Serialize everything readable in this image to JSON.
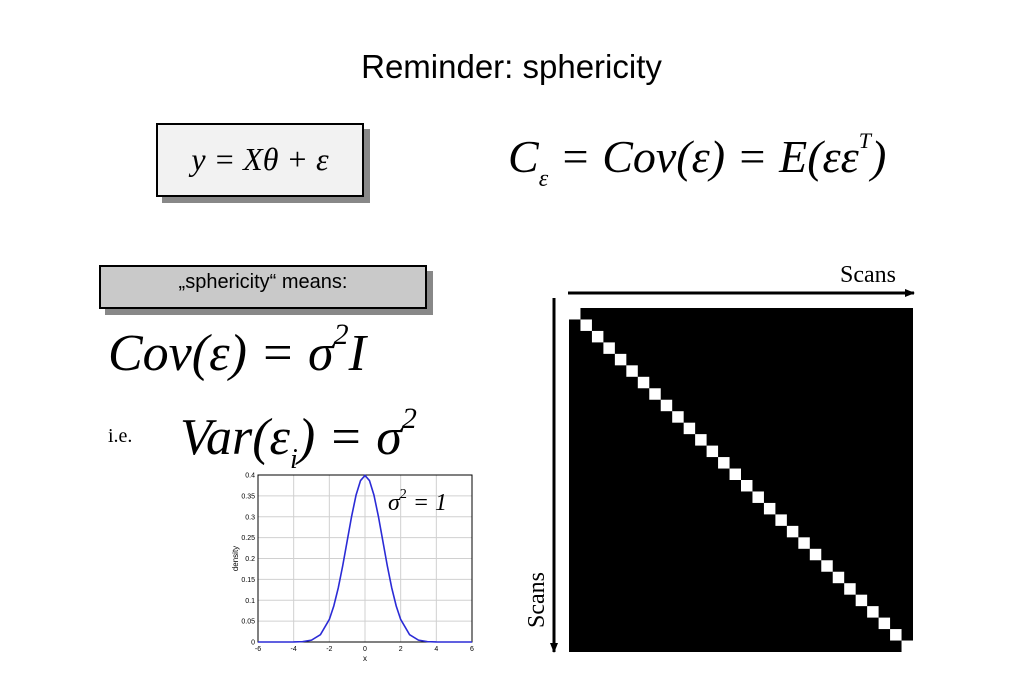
{
  "title": "Reminder: sphericity",
  "model_equation": "y = Xθ + ε",
  "covariance_definition": {
    "lhs": "C",
    "lhs_subscript": "ε",
    "rhs": " = Cov(ε) = E(εε",
    "superscript": "T",
    "close": ")"
  },
  "sphericity_label": "„sphericity“ means:",
  "sphericity_equation": {
    "main": "Cov(ε) = σ",
    "superscript": "2",
    "tail": "I"
  },
  "ie_label": "i.e.",
  "variance_equation": {
    "main": "Var(ε",
    "subscript": "i",
    "rest": ") = σ",
    "superscript": "2"
  },
  "sigma_note": {
    "base": "σ",
    "superscript": "2",
    "rest": " = 1"
  },
  "chart_data": {
    "type": "line",
    "title": "",
    "xlabel": "x",
    "ylabel": "density",
    "xlim": [
      -6,
      6
    ],
    "ylim": [
      0,
      0.4
    ],
    "xticks": [
      -6,
      -4,
      -2,
      0,
      2,
      4,
      6
    ],
    "yticks": [
      0,
      0.05,
      0.1,
      0.15,
      0.2,
      0.25,
      0.3,
      0.35,
      0.4
    ],
    "ytick_labels": [
      "0",
      "0.05",
      "0.1",
      "0.15",
      "0.2",
      "0.25",
      "0.3",
      "0.35",
      "0.4"
    ],
    "grid": true,
    "series": [
      {
        "color": "#2b2bd6",
        "x": [
          -6,
          -5.5,
          -5,
          -4.5,
          -4,
          -3.5,
          -3,
          -2.5,
          -2,
          -1.75,
          -1.5,
          -1.25,
          -1,
          -0.75,
          -0.5,
          -0.25,
          0,
          0.25,
          0.5,
          0.75,
          1,
          1.25,
          1.5,
          1.75,
          2,
          2.5,
          3,
          3.5,
          4,
          4.5,
          5,
          5.5,
          6
        ],
        "y": [
          0,
          0,
          0,
          0,
          0.0001,
          0.0009,
          0.0044,
          0.0175,
          0.054,
          0.0863,
          0.1295,
          0.1826,
          0.242,
          0.3011,
          0.3521,
          0.3867,
          0.3989,
          0.3867,
          0.3521,
          0.3011,
          0.242,
          0.1826,
          0.1295,
          0.0863,
          0.054,
          0.0175,
          0.0044,
          0.0009,
          0.0001,
          0,
          0,
          0,
          0
        ]
      }
    ]
  },
  "matrix_figure": {
    "x_label": "Scans",
    "y_label": "Scans",
    "n_scans": 30,
    "background_color": "#000000",
    "diagonal_color": "#ffffff"
  }
}
